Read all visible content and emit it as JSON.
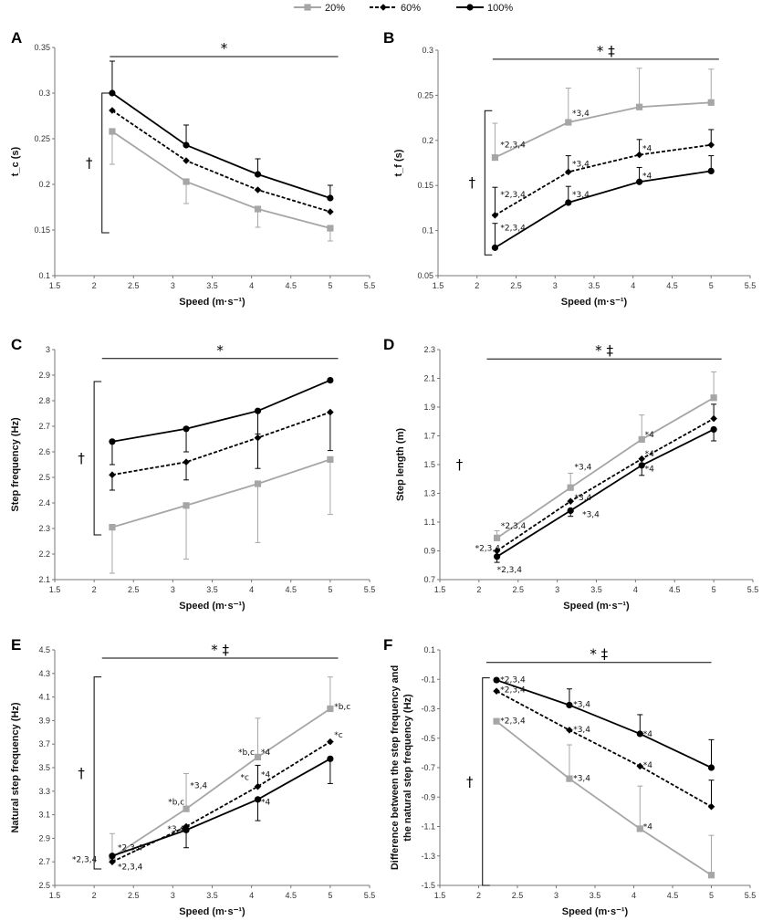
{
  "legend": [
    {
      "name": "20%",
      "color": "#a6a6a6",
      "dash": false,
      "marker": "square"
    },
    {
      "name": "60%",
      "color": "#000000",
      "dash": true,
      "marker": "diamond"
    },
    {
      "name": "100%",
      "color": "#000000",
      "dash": false,
      "marker": "circle"
    }
  ],
  "chart_data": [
    {
      "id": "A",
      "type": "line",
      "panel_label": "A",
      "xlabel": "Speed (m·s⁻¹)",
      "ylabel": "t_c (s)",
      "xlim": [
        1.5,
        5.5
      ],
      "ylim": [
        0.1,
        0.35
      ],
      "xticks": [
        1.5,
        2,
        2.5,
        3,
        3.5,
        4,
        4.5,
        5,
        5.5
      ],
      "yticks": [
        0.1,
        0.15,
        0.2,
        0.25,
        0.3,
        0.35
      ],
      "x": [
        2.23,
        3.17,
        4.08,
        5.0
      ],
      "series": [
        {
          "name": "20%",
          "values": [
            0.258,
            0.203,
            0.173,
            0.152
          ],
          "errors": [
            0.036,
            0.024,
            0.02,
            0.014
          ],
          "err_dir": "down"
        },
        {
          "name": "60%",
          "values": [
            0.281,
            0.226,
            0.194,
            0.17
          ],
          "errors": [
            0.0,
            0.0,
            0.0,
            0.0
          ],
          "err_dir": "up"
        },
        {
          "name": "100%",
          "values": [
            0.3,
            0.243,
            0.211,
            0.185
          ],
          "errors": [
            0.035,
            0.022,
            0.017,
            0.014
          ],
          "err_dir": "up"
        }
      ],
      "top_line": {
        "x": [
          2.2,
          5.1
        ],
        "y": 0.34,
        "label": "*"
      },
      "bracket": {
        "x": 2.1,
        "y": [
          0.147,
          0.3
        ],
        "label": "†"
      },
      "annotations": []
    },
    {
      "id": "B",
      "type": "line",
      "panel_label": "B",
      "xlabel": "Speed (m·s⁻¹)",
      "ylabel": "t_f (s)",
      "xlim": [
        1.5,
        5.5
      ],
      "ylim": [
        0.05,
        0.3
      ],
      "xticks": [
        1.5,
        2,
        2.5,
        3,
        3.5,
        4,
        4.5,
        5,
        5.5
      ],
      "yticks": [
        0.05,
        0.1,
        0.15,
        0.2,
        0.25,
        0.3
      ],
      "x": [
        2.23,
        3.17,
        4.08,
        5.0
      ],
      "series": [
        {
          "name": "20%",
          "values": [
            0.181,
            0.22,
            0.237,
            0.242
          ],
          "errors": [
            0.038,
            0.038,
            0.043,
            0.037
          ],
          "err_dir": "up"
        },
        {
          "name": "60%",
          "values": [
            0.117,
            0.165,
            0.184,
            0.195
          ],
          "errors": [
            0.031,
            0.018,
            0.017,
            0.017
          ],
          "err_dir": "up"
        },
        {
          "name": "100%",
          "values": [
            0.081,
            0.131,
            0.154,
            0.166
          ],
          "errors": [
            0.027,
            0.018,
            0.016,
            0.017
          ],
          "err_dir": "up"
        }
      ],
      "top_line": {
        "x": [
          2.2,
          5.1
        ],
        "y": 0.29,
        "label": "* ‡"
      },
      "bracket": {
        "x": 2.1,
        "y": [
          0.073,
          0.233
        ],
        "label": "†"
      },
      "annotations": [
        {
          "x": 2.3,
          "y": 0.195,
          "text": "*2,3,4"
        },
        {
          "x": 3.22,
          "y": 0.23,
          "text": "*3,4"
        },
        {
          "x": 2.3,
          "y": 0.14,
          "text": "*2,3,4"
        },
        {
          "x": 3.22,
          "y": 0.174,
          "text": "*3,4"
        },
        {
          "x": 4.12,
          "y": 0.191,
          "text": "*4"
        },
        {
          "x": 2.3,
          "y": 0.103,
          "text": "*2,3,4"
        },
        {
          "x": 3.22,
          "y": 0.14,
          "text": "*3,4"
        },
        {
          "x": 4.12,
          "y": 0.161,
          "text": "*4"
        }
      ]
    },
    {
      "id": "C",
      "type": "line",
      "panel_label": "C",
      "xlabel": "Speed (m·s⁻¹)",
      "ylabel": "Step frequency (Hz)",
      "xlim": [
        1.5,
        5.5
      ],
      "ylim": [
        2.1,
        3.0
      ],
      "xticks": [
        1.5,
        2,
        2.5,
        3,
        3.5,
        4,
        4.5,
        5,
        5.5
      ],
      "yticks": [
        2.1,
        2.2,
        2.3,
        2.4,
        2.5,
        2.6,
        2.7,
        2.8,
        2.9,
        3
      ],
      "x": [
        2.23,
        3.17,
        4.08,
        5.0
      ],
      "series": [
        {
          "name": "20%",
          "values": [
            2.305,
            2.39,
            2.475,
            2.57
          ],
          "errors": [
            0.18,
            0.21,
            0.23,
            0.215
          ],
          "err_dir": "down"
        },
        {
          "name": "60%",
          "values": [
            2.51,
            2.56,
            2.655,
            2.755
          ],
          "errors": [
            0.06,
            0.07,
            0.12,
            0.15
          ],
          "err_dir": "down"
        },
        {
          "name": "100%",
          "values": [
            2.64,
            2.69,
            2.76,
            2.88
          ],
          "errors": [
            0.09,
            0.09,
            0.09,
            0.0
          ],
          "err_dir": "down"
        }
      ],
      "top_line": {
        "x": [
          2.1,
          5.1
        ],
        "y": 2.965,
        "label": "*"
      },
      "bracket": {
        "x": 2.0,
        "y": [
          2.275,
          2.875
        ],
        "label": "†"
      },
      "annotations": []
    },
    {
      "id": "D",
      "type": "line",
      "panel_label": "D",
      "xlabel": "Speed (m·s⁻¹)",
      "ylabel": "Step length (m)",
      "xlim": [
        1.5,
        5.5
      ],
      "ylim": [
        0.7,
        2.3
      ],
      "xticks": [
        1.5,
        2,
        2.5,
        3,
        3.5,
        4,
        4.5,
        5,
        5.5
      ],
      "yticks": [
        0.7,
        0.9,
        1.1,
        1.3,
        1.5,
        1.7,
        1.9,
        2.1,
        2.3
      ],
      "x": [
        2.23,
        3.17,
        4.08,
        5.0
      ],
      "series": [
        {
          "name": "20%",
          "values": [
            0.99,
            1.34,
            1.675,
            1.965
          ],
          "errors": [
            0.05,
            0.1,
            0.17,
            0.18
          ],
          "err_dir": "up"
        },
        {
          "name": "60%",
          "values": [
            0.9,
            1.245,
            1.54,
            1.82
          ],
          "errors": [
            0.0,
            0.0,
            0.0,
            0.1
          ],
          "err_dir": "up"
        },
        {
          "name": "100%",
          "values": [
            0.86,
            1.18,
            1.495,
            1.745
          ],
          "errors": [
            0.04,
            0.04,
            0.07,
            0.08
          ],
          "err_dir": "down"
        }
      ],
      "top_line": {
        "x": [
          2.1,
          5.1
        ],
        "y": 2.235,
        "label": "* ‡"
      },
      "bracket": null,
      "dagger": {
        "x": 1.75,
        "y": 1.5,
        "label": "†"
      },
      "annotations": [
        {
          "x": 2.28,
          "y": 1.075,
          "text": "*2,3,4"
        },
        {
          "x": 1.95,
          "y": 0.92,
          "text": "*2,3,4"
        },
        {
          "x": 2.23,
          "y": 0.77,
          "text": "*2,3,4"
        },
        {
          "x": 3.22,
          "y": 1.485,
          "text": "*3,4"
        },
        {
          "x": 3.22,
          "y": 1.27,
          "text": "*3,4"
        },
        {
          "x": 3.32,
          "y": 1.155,
          "text": "*3,4"
        },
        {
          "x": 4.12,
          "y": 1.71,
          "text": "*4"
        },
        {
          "x": 4.12,
          "y": 1.575,
          "text": "*4"
        },
        {
          "x": 4.12,
          "y": 1.47,
          "text": "*4"
        }
      ]
    },
    {
      "id": "E",
      "type": "line",
      "panel_label": "E",
      "xlabel": "Speed (m·s⁻¹)",
      "ylabel": "Natural step frequency (Hz)",
      "xlim": [
        1.5,
        5.5
      ],
      "ylim": [
        2.5,
        4.5
      ],
      "xticks": [
        1.5,
        2,
        2.5,
        3,
        3.5,
        4,
        4.5,
        5,
        5.5
      ],
      "yticks": [
        2.5,
        2.7,
        2.9,
        3.1,
        3.3,
        3.5,
        3.7,
        3.9,
        4.1,
        4.3,
        4.5
      ],
      "x": [
        2.23,
        3.17,
        4.08,
        5.0
      ],
      "series": [
        {
          "name": "20%",
          "values": [
            2.74,
            3.15,
            3.59,
            4.0
          ],
          "errors": [
            0.2,
            0.3,
            0.33,
            0.27
          ],
          "err_dir": "up"
        },
        {
          "name": "60%",
          "values": [
            2.7,
            3.0,
            3.34,
            3.72
          ],
          "errors": [
            0.0,
            0.0,
            0.18,
            0.0
          ],
          "err_dir": "up"
        },
        {
          "name": "100%",
          "values": [
            2.75,
            2.97,
            3.23,
            3.575
          ],
          "errors": [
            0.0,
            0.15,
            0.18,
            0.21
          ],
          "err_dir": "down"
        }
      ],
      "top_line": {
        "x": [
          2.1,
          5.1
        ],
        "y": 4.43,
        "label": "* ‡"
      },
      "bracket": {
        "x": 2.0,
        "y": [
          2.64,
          4.27
        ],
        "label": "†"
      },
      "annotations": [
        {
          "x": 2.3,
          "y": 2.82,
          "text": "*2,3,4"
        },
        {
          "x": 1.72,
          "y": 2.72,
          "text": "*2,3,4"
        },
        {
          "x": 2.3,
          "y": 2.66,
          "text": "*2,3,4"
        },
        {
          "x": 2.94,
          "y": 3.21,
          "text": "*b,c"
        },
        {
          "x": 3.22,
          "y": 3.35,
          "text": "*3,4"
        },
        {
          "x": 2.93,
          "y": 2.98,
          "text": "*3,4"
        },
        {
          "x": 3.83,
          "y": 3.63,
          "text": "*b,c"
        },
        {
          "x": 4.12,
          "y": 3.63,
          "text": "*4"
        },
        {
          "x": 3.86,
          "y": 3.42,
          "text": "*c"
        },
        {
          "x": 4.12,
          "y": 3.44,
          "text": "*4"
        },
        {
          "x": 4.12,
          "y": 3.21,
          "text": "*4"
        },
        {
          "x": 5.05,
          "y": 4.02,
          "text": "*b,c"
        },
        {
          "x": 5.05,
          "y": 3.78,
          "text": "*c"
        }
      ]
    },
    {
      "id": "F",
      "type": "line",
      "panel_label": "F",
      "xlabel": "Speed (m·s⁻¹)",
      "ylabel": "Difference between the step frequency and\nthe natural step frequency (Hz)",
      "xlim": [
        1.5,
        5.5
      ],
      "ylim": [
        -1.5,
        0.1
      ],
      "xticks": [
        1.5,
        2,
        2.5,
        3,
        3.5,
        4,
        4.5,
        5,
        5.5
      ],
      "yticks": [
        -1.5,
        -1.3,
        -1.1,
        -0.9,
        -0.7,
        -0.5,
        -0.3,
        -0.1,
        0.1
      ],
      "x": [
        2.23,
        3.17,
        4.08,
        5.0
      ],
      "series": [
        {
          "name": "20%",
          "values": [
            -0.385,
            -0.775,
            -1.115,
            -1.43
          ],
          "errors": [
            0.0,
            0.23,
            0.29,
            0.27
          ],
          "err_dir": "up"
        },
        {
          "name": "60%",
          "values": [
            -0.18,
            -0.445,
            -0.69,
            -0.965
          ],
          "errors": [
            0.0,
            0.0,
            0.0,
            0.18
          ],
          "err_dir": "up"
        },
        {
          "name": "100%",
          "values": [
            -0.105,
            -0.275,
            -0.47,
            -0.7
          ],
          "errors": [
            0.0,
            0.11,
            0.13,
            0.19
          ],
          "err_dir": "up"
        }
      ],
      "top_line": {
        "x": [
          2.1,
          5.0
        ],
        "y": 0.015,
        "label": "* ‡"
      },
      "bracket": {
        "x": 2.05,
        "y": [
          -1.5,
          -0.09
        ],
        "label": "†"
      },
      "annotations": [
        {
          "x": 2.28,
          "y": -0.1,
          "text": "*2,3,4"
        },
        {
          "x": 2.28,
          "y": -0.17,
          "text": "*2,3,4"
        },
        {
          "x": 2.28,
          "y": -0.38,
          "text": "*2,3,4"
        },
        {
          "x": 3.22,
          "y": -0.27,
          "text": "*3,4"
        },
        {
          "x": 3.22,
          "y": -0.44,
          "text": "*3,4"
        },
        {
          "x": 3.22,
          "y": -0.77,
          "text": "*3,4"
        },
        {
          "x": 4.12,
          "y": -0.47,
          "text": "*4"
        },
        {
          "x": 4.12,
          "y": -0.68,
          "text": "*4"
        },
        {
          "x": 4.12,
          "y": -1.1,
          "text": "*4"
        }
      ]
    }
  ]
}
